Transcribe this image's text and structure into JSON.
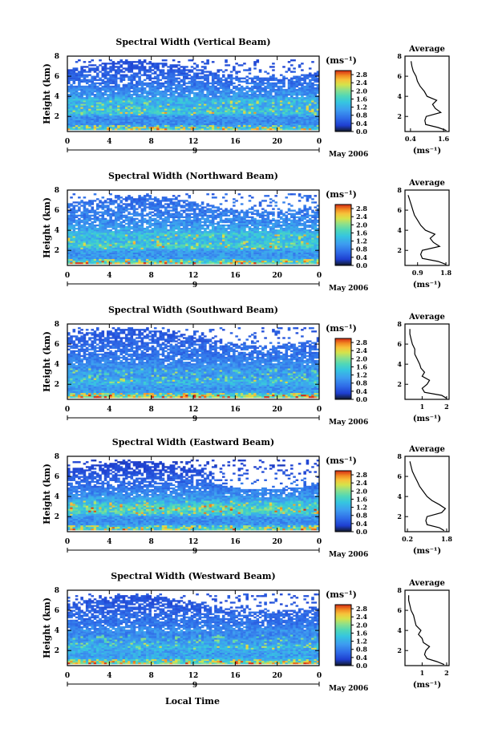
{
  "page": {
    "x_axis_title": "Local Time",
    "date_label": "May 2006",
    "day_label": "9"
  },
  "colors": {
    "colormap": [
      "#1a237e",
      "#1e3fd0",
      "#2f6de8",
      "#3d9cf0",
      "#35c5e0",
      "#4fd7b8",
      "#8ee08a",
      "#d6e24a",
      "#f7c23a",
      "#f28a22",
      "#e4451a",
      "#b81d12"
    ]
  },
  "chart_data": [
    {
      "type": "heatmap",
      "title": "Spectral Width (Vertical Beam)",
      "xlabel": "",
      "ylabel": "Height (km)",
      "xlim": [
        0,
        24
      ],
      "ylim": [
        0.5,
        8
      ],
      "x_ticks": [
        "0",
        "4",
        "8",
        "12",
        "16",
        "20",
        "0"
      ],
      "y_ticks": [
        "2",
        "4",
        "6",
        "8"
      ],
      "colorbar": {
        "unit": "(ms⁻¹)",
        "ticks": [
          "0.0",
          "0.4",
          "0.8",
          "1.2",
          "1.6",
          "2.0",
          "2.4",
          "2.8"
        ],
        "range": [
          0,
          3.0
        ]
      },
      "profile": {
        "title": "Average",
        "xlabel": "(ms⁻¹)",
        "x_ticks": [
          "0.4",
          "1.6"
        ],
        "xlim": [
          0.2,
          1.8
        ],
        "y_ticks": [
          "2",
          "4",
          "6",
          "8"
        ],
        "ylim": [
          0.5,
          8
        ],
        "height_km": [
          0.6,
          0.9,
          1.2,
          1.6,
          2.0,
          2.4,
          2.8,
          3.2,
          3.6,
          4.0,
          4.5,
          5.0,
          5.5,
          6.0,
          6.5,
          7.0,
          7.5
        ],
        "width": [
          1.7,
          1.4,
          0.95,
          0.92,
          0.97,
          1.5,
          1.3,
          1.2,
          1.35,
          1.0,
          0.9,
          0.75,
          0.65,
          0.6,
          0.5,
          0.45,
          0.42
        ]
      }
    },
    {
      "type": "heatmap",
      "title": "Spectral Width (Northward Beam)",
      "xlabel": "",
      "ylabel": "Height (km)",
      "xlim": [
        0,
        24
      ],
      "ylim": [
        0.5,
        8
      ],
      "x_ticks": [
        "0",
        "4",
        "8",
        "12",
        "16",
        "20",
        "0"
      ],
      "y_ticks": [
        "2",
        "4",
        "6",
        "8"
      ],
      "colorbar": {
        "unit": "(ms⁻¹)",
        "ticks": [
          "0.0",
          "0.4",
          "0.8",
          "1.2",
          "1.6",
          "2.0",
          "2.4",
          "2.8"
        ],
        "range": [
          0,
          3.0
        ]
      },
      "profile": {
        "title": "Average",
        "xlabel": "(ms⁻¹)",
        "x_ticks": [
          "0.9",
          "1.8"
        ],
        "xlim": [
          0.5,
          1.9
        ],
        "y_ticks": [
          "2",
          "4",
          "6",
          "8"
        ],
        "ylim": [
          0.5,
          8
        ],
        "height_km": [
          0.6,
          0.9,
          1.2,
          1.6,
          2.0,
          2.4,
          2.8,
          3.2,
          3.6,
          4.0,
          4.5,
          5.0,
          5.5,
          6.0,
          6.5,
          7.0,
          7.5
        ],
        "width": [
          1.8,
          1.55,
          1.05,
          1.0,
          1.05,
          1.6,
          1.4,
          1.3,
          1.45,
          1.15,
          1.0,
          0.9,
          0.8,
          0.75,
          0.7,
          0.65,
          0.6
        ]
      }
    },
    {
      "type": "heatmap",
      "title": "Spectral Width (Southward Beam)",
      "xlabel": "",
      "ylabel": "Height (km)",
      "xlim": [
        0,
        24
      ],
      "ylim": [
        0.5,
        8
      ],
      "x_ticks": [
        "0",
        "4",
        "8",
        "12",
        "16",
        "20",
        "0"
      ],
      "y_ticks": [
        "2",
        "4",
        "6",
        "8"
      ],
      "colorbar": {
        "unit": "(ms⁻¹)",
        "ticks": [
          "0.0",
          "0.4",
          "0.8",
          "1.2",
          "1.6",
          "2.0",
          "2.4",
          "2.8"
        ],
        "range": [
          0,
          3.0
        ]
      },
      "profile": {
        "title": "Average",
        "xlabel": "(ms⁻¹)",
        "x_ticks": [
          "1",
          "2"
        ],
        "xlim": [
          0.3,
          2.1
        ],
        "y_ticks": [
          "2",
          "4",
          "6",
          "8"
        ],
        "ylim": [
          0.5,
          8
        ],
        "height_km": [
          0.6,
          0.9,
          1.2,
          1.6,
          2.0,
          2.4,
          2.8,
          3.2,
          3.6,
          4.0,
          4.5,
          5.0,
          5.5,
          6.0,
          6.5,
          7.0,
          7.5
        ],
        "width": [
          2.0,
          1.8,
          1.1,
          1.0,
          1.2,
          1.3,
          1.0,
          1.1,
          0.95,
          0.9,
          0.8,
          0.7,
          0.7,
          0.6,
          0.55,
          0.5,
          0.5
        ]
      }
    },
    {
      "type": "heatmap",
      "title": "Spectral Width (Eastward Beam)",
      "xlabel": "",
      "ylabel": "Height (km)",
      "xlim": [
        0,
        24
      ],
      "ylim": [
        0.5,
        8
      ],
      "x_ticks": [
        "0",
        "4",
        "8",
        "12",
        "16",
        "20",
        "0"
      ],
      "y_ticks": [
        "2",
        "4",
        "6",
        "8"
      ],
      "colorbar": {
        "unit": "(ms⁻¹)",
        "ticks": [
          "0.0",
          "0.4",
          "0.8",
          "1.2",
          "1.6",
          "2.0",
          "2.4",
          "2.8"
        ],
        "range": [
          0,
          3.0
        ]
      },
      "profile": {
        "title": "Average",
        "xlabel": "(ms⁻¹)",
        "x_ticks": [
          "0.2",
          "1.8"
        ],
        "xlim": [
          0.1,
          1.9
        ],
        "y_ticks": [
          "2",
          "4",
          "6",
          "8"
        ],
        "ylim": [
          0.5,
          8
        ],
        "height_km": [
          0.6,
          0.9,
          1.2,
          1.6,
          2.0,
          2.4,
          2.8,
          3.2,
          3.6,
          4.0,
          4.5,
          5.0,
          5.5,
          6.0,
          6.5,
          7.0,
          7.5
        ],
        "width": [
          1.7,
          1.5,
          1.0,
          0.95,
          1.0,
          1.6,
          1.75,
          1.5,
          1.2,
          1.0,
          0.85,
          0.7,
          0.6,
          0.5,
          0.4,
          0.35,
          0.3
        ]
      }
    },
    {
      "type": "heatmap",
      "title": "Spectral Width (Westward Beam)",
      "xlabel": "Local Time",
      "ylabel": "Height (km)",
      "xlim": [
        0,
        24
      ],
      "ylim": [
        0.5,
        8
      ],
      "x_ticks": [
        "0",
        "4",
        "8",
        "12",
        "16",
        "20",
        "0"
      ],
      "y_ticks": [
        "2",
        "4",
        "6",
        "8"
      ],
      "colorbar": {
        "unit": "(ms⁻¹)",
        "ticks": [
          "0.0",
          "0.4",
          "0.8",
          "1.2",
          "1.6",
          "2.0",
          "2.4",
          "2.8"
        ],
        "range": [
          0,
          3.0
        ]
      },
      "profile": {
        "title": "Average",
        "xlabel": "(ms⁻¹)",
        "x_ticks": [
          "1",
          "2"
        ],
        "xlim": [
          0.3,
          2.1
        ],
        "y_ticks": [
          "2",
          "4",
          "6",
          "8"
        ],
        "ylim": [
          0.5,
          8
        ],
        "height_km": [
          0.6,
          0.9,
          1.2,
          1.6,
          2.0,
          2.4,
          2.8,
          3.2,
          3.6,
          4.0,
          4.5,
          5.0,
          5.5,
          6.0,
          6.5,
          7.0,
          7.5
        ],
        "width": [
          1.9,
          1.6,
          1.2,
          1.1,
          1.15,
          1.3,
          1.05,
          1.0,
          0.85,
          0.95,
          0.75,
          0.7,
          0.65,
          0.55,
          0.5,
          0.45,
          0.45
        ]
      }
    }
  ]
}
